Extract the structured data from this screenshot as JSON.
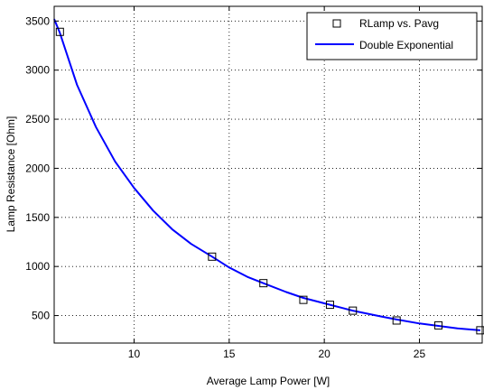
{
  "chart_data": {
    "type": "scatter",
    "xlabel": "Average Lamp Power [W]",
    "ylabel": "Lamp Resistance [Ohm]",
    "xlim": [
      5.8,
      28.3
    ],
    "ylim": [
      220,
      3650
    ],
    "xticks": [
      10,
      15,
      20,
      25
    ],
    "yticks": [
      500,
      1000,
      1500,
      2000,
      2500,
      3000,
      3500
    ],
    "grid": true,
    "legend": "top-right",
    "series": [
      {
        "name": "RLamp vs. Pavg",
        "kind": "markers",
        "marker": "square",
        "color": "#000000",
        "x": [
          6.1,
          14.1,
          16.8,
          18.9,
          20.3,
          21.5,
          23.8,
          26.0,
          28.2
        ],
        "y": [
          3390,
          1100,
          830,
          660,
          610,
          550,
          450,
          400,
          350
        ]
      },
      {
        "name": "Double Exponential",
        "kind": "line",
        "color": "#0000ff",
        "x": [
          5.8,
          6.1,
          7.0,
          8.0,
          9.0,
          10.0,
          11.0,
          12.0,
          13.0,
          14.1,
          15.0,
          16.0,
          16.8,
          18.0,
          18.9,
          20.3,
          21.5,
          23.0,
          23.8,
          25.0,
          26.0,
          27.0,
          28.2
        ],
        "y": [
          3520,
          3380,
          2850,
          2420,
          2070,
          1800,
          1570,
          1380,
          1230,
          1100,
          990,
          890,
          830,
          740,
          680,
          610,
          550,
          490,
          460,
          420,
          395,
          370,
          350
        ]
      }
    ]
  }
}
